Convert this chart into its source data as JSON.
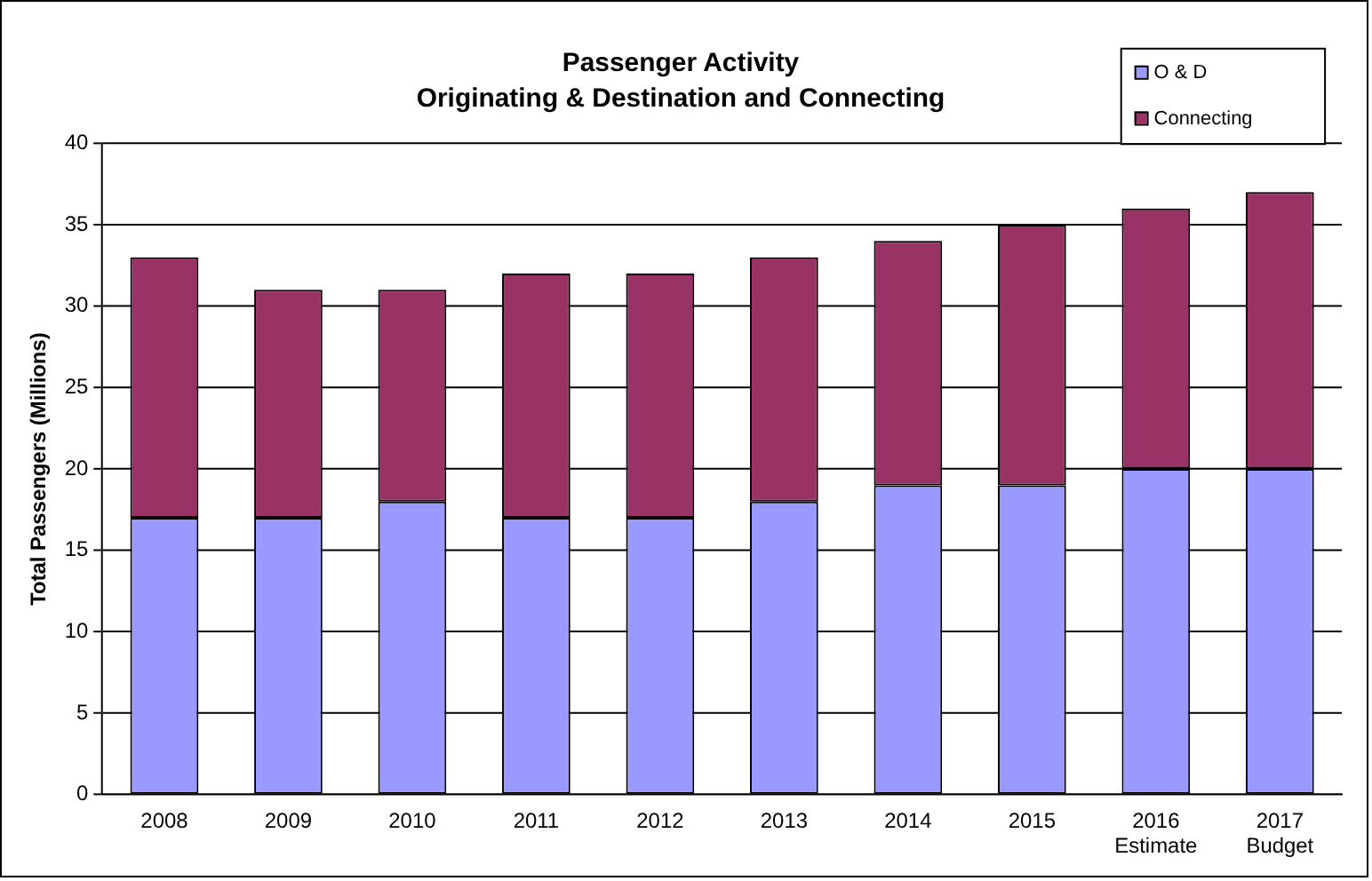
{
  "chart_data": {
    "type": "bar",
    "title": "Passenger Activity",
    "subtitle": "Originating & Destination and Connecting",
    "ylabel": "Total Passengers (Millions)",
    "categories": [
      "2008",
      "2009",
      "2010",
      "2011",
      "2012",
      "2013",
      "2014",
      "2015",
      "2016\nEstimate",
      "2017\nBudget"
    ],
    "series": [
      {
        "name": "O & D",
        "color": "#9999ff",
        "values": [
          17,
          17,
          18,
          17,
          17,
          18,
          19,
          19,
          20,
          20
        ]
      },
      {
        "name": "Connecting",
        "color": "#993366",
        "values": [
          16,
          14,
          13,
          15,
          15,
          15,
          15,
          16,
          16,
          17
        ]
      }
    ],
    "stacked": true,
    "ylim": [
      0,
      40
    ],
    "yticks": [
      0,
      5,
      10,
      15,
      20,
      25,
      30,
      35,
      40
    ],
    "grid": "y",
    "legend": "top right"
  }
}
